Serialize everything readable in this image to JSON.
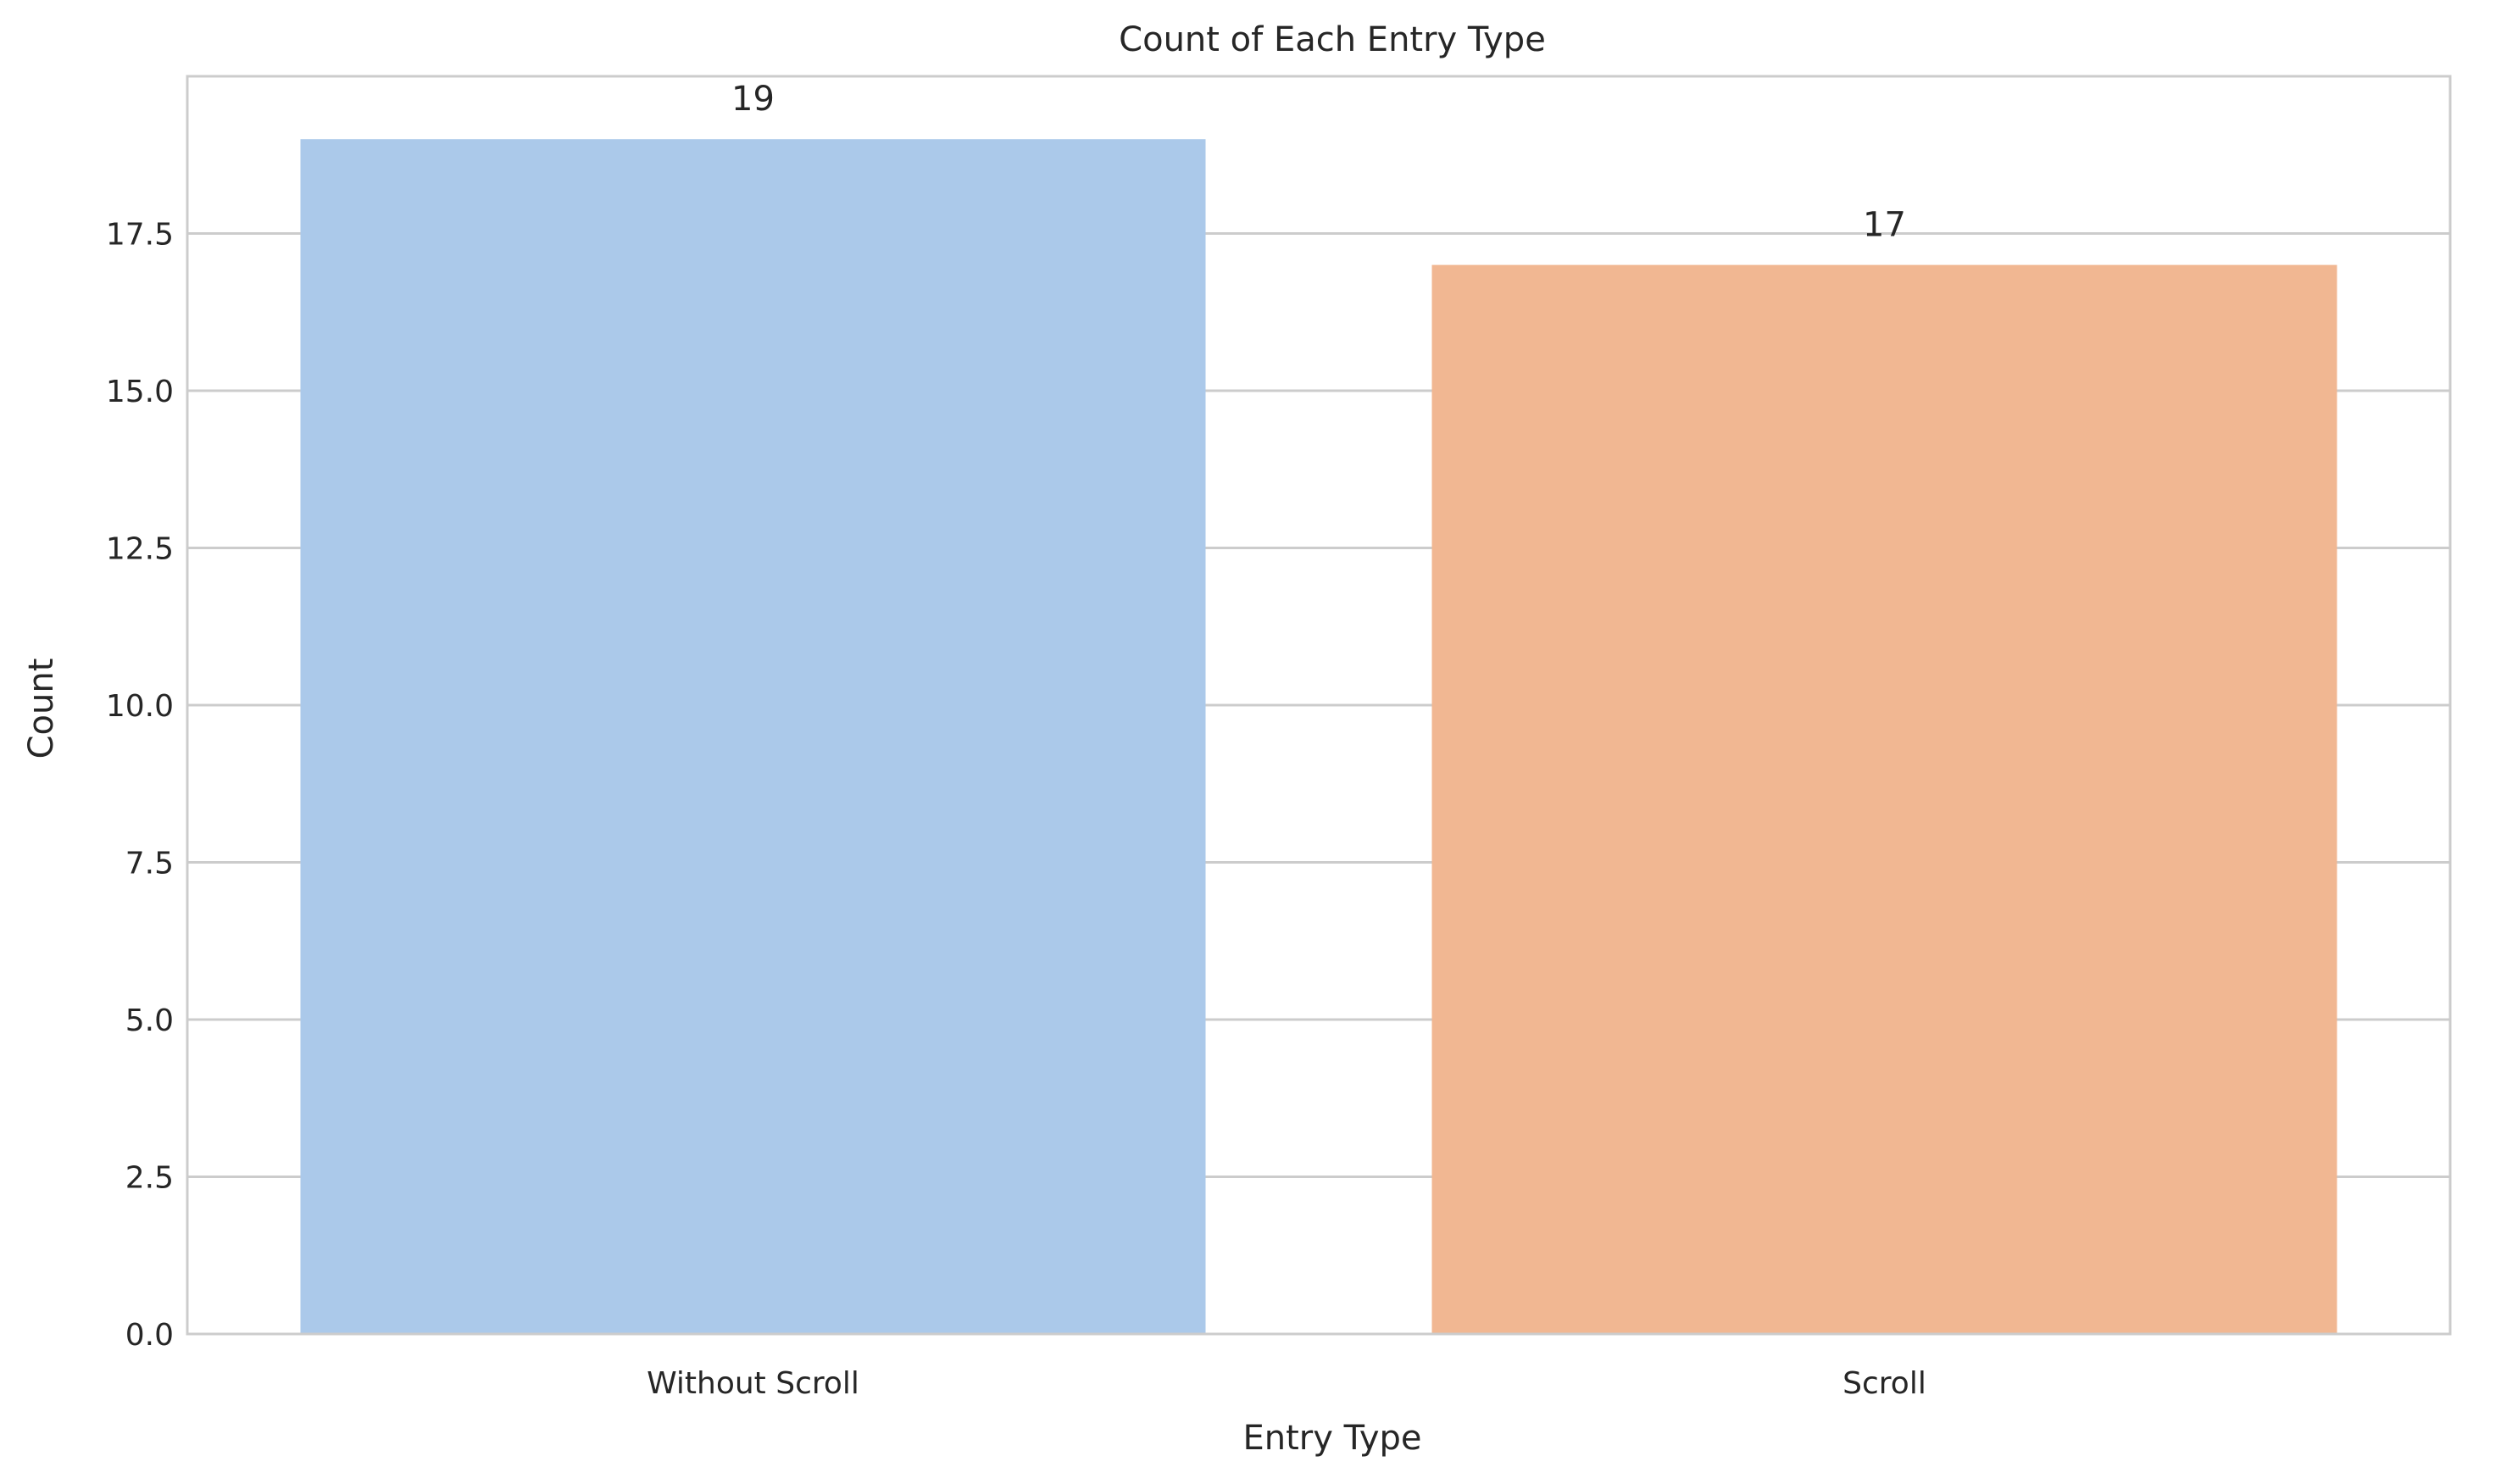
{
  "chart_data": {
    "type": "bar",
    "title": "Count of Each Entry Type",
    "xlabel": "Entry Type",
    "ylabel": "Count",
    "categories": [
      "Without Scroll",
      "Scroll"
    ],
    "values": [
      19,
      17
    ],
    "data_labels": [
      "19",
      "17"
    ],
    "colors": [
      "#abc9ea",
      "#f1b792"
    ],
    "ylim": [
      0,
      20
    ],
    "yticks": [
      0.0,
      2.5,
      5.0,
      7.5,
      10.0,
      12.5,
      15.0,
      17.5
    ],
    "ytick_labels": [
      "0.0",
      "2.5",
      "5.0",
      "7.5",
      "10.0",
      "12.5",
      "15.0",
      "17.5"
    ],
    "grid": "y",
    "grid_color": "#cccccc",
    "axis_color": "#cccccc",
    "legend": "none"
  }
}
